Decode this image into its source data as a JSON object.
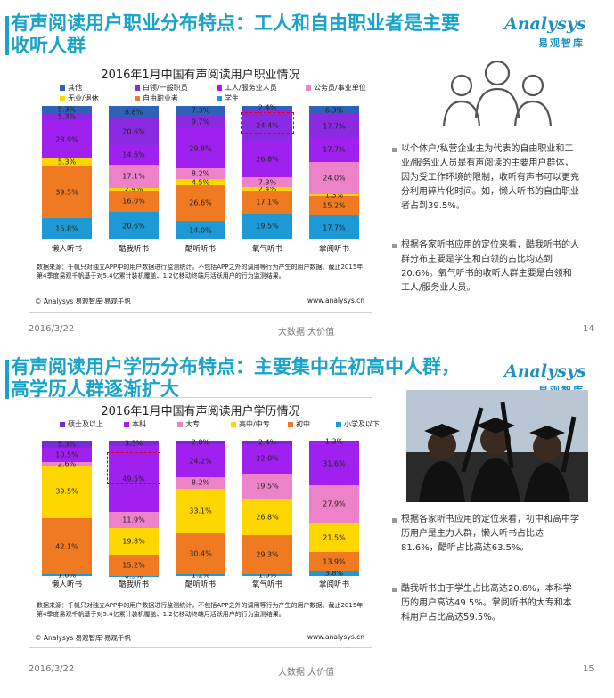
{
  "pages": [
    {
      "title_line1": "有声阅读用户职业分布特点：工人和自由职业者是主要",
      "title_line2": "收听人群",
      "logo_word": "Analysys",
      "logo_cn": "易观智库",
      "chart_title": "2016年1月中国有声阅读用户职业情况",
      "legend": [
        {
          "label": "其他",
          "color": "#2e62b6"
        },
        {
          "label": "白领/一般职员",
          "color": "#8a2be2"
        },
        {
          "label": "工人/服务业人员",
          "color": "#a020f0"
        },
        {
          "label": "公务员/事业单位",
          "color": "#ee82c8"
        },
        {
          "label": "无业/退休",
          "color": "#ffd700"
        },
        {
          "label": "自由职业者",
          "color": "#f07a22"
        },
        {
          "label": "学生",
          "color": "#1d9ad6"
        }
      ],
      "source": "数据来源：千帆只对独立APP中的用户数据进行监测统计，不包括APP之外的调用等行为产生的用户数据。截止2015年第4季度易观千帆基于对5.4亿累计装机覆盖、1.2亿移动终端月活跃用户的行为监测结果。",
      "copyright": "© Analysys 易观智库·易观千帆",
      "site": "www.analysys.cn",
      "footer_date": "2016/3/22",
      "footer_mid": "大数据    大价值",
      "page_number": "14",
      "bullets": [
        "以个体户/私营企业主为代表的自由职业和工业/服务业人员是有声阅读的主要用户群体，因为受工作环境的限制，收听有声书可以更充分利用碎片化时间。如，懒人听书的自由职业者占到39.5%。",
        "根据各家听书应用的定位来看，酷我听书的人群分布主要是学生和白领的占比均达到20.6%。氧气听书的收听人群主要是白领和工人/服务业人员。"
      ]
    },
    {
      "title_line1": "有声阅读用户学历分布特点：主要集中在初高中人群，",
      "title_line2": "高学历人群逐渐扩大",
      "logo_word": "Analysys",
      "logo_cn": "易观智库",
      "chart_title": "2016年1月中国有声阅读用户学历情况",
      "legend": [
        {
          "label": "硕士及以上",
          "color": "#7b2bd6"
        },
        {
          "label": "本科",
          "color": "#a020f0"
        },
        {
          "label": "大专",
          "color": "#ee82c8"
        },
        {
          "label": "高中/中专",
          "color": "#ffd700"
        },
        {
          "label": "初中",
          "color": "#f07a22"
        },
        {
          "label": "小学及以下",
          "color": "#1d9ad6"
        }
      ],
      "source": "数据来源：千帆只对独立APP中的用户数据进行监测统计，不包括APP之外的调用等行为产生的用户数据。截止2015年第4季度易观千帆基于对5.4亿累计装机覆盖、1.2亿移动终端月活跃用户的行为监测结果。",
      "copyright": "© Analysys 易观智库·易观千帆",
      "site": "www.analysys.cn",
      "footer_date": "2016/3/22",
      "footer_mid": "大数据    大价值",
      "page_number": "15",
      "bullets": [
        "根据各家听书应用的定位来看，初中和高中学历用户是主力人群，懒人听书占比达81.6%，酷听占比高达63.5%。",
        "酷我听书由于学生占比高达20.6%，本科学历的用户高达49.5%。掌阅听书的大专和本科用户占比高达59.5%。"
      ]
    }
  ],
  "chart_data": [
    {
      "type": "bar",
      "stacked": true,
      "title": "2016年1月中国有声阅读用户职业情况",
      "categories": [
        "懒人听书",
        "酷我听书",
        "酷听听书",
        "氧气听书",
        "掌阅听书"
      ],
      "ylim": [
        0,
        100
      ],
      "series": [
        {
          "name": "学生",
          "color": "#1d9ad6",
          "values": [
            15.8,
            20.6,
            14.0,
            19.5,
            17.7
          ]
        },
        {
          "name": "自由职业者",
          "color": "#f07a22",
          "values": [
            39.5,
            16.0,
            26.6,
            17.1,
            15.2
          ]
        },
        {
          "name": "无业/退休",
          "color": "#ffd700",
          "values": [
            5.3,
            2.4,
            4.5,
            2.4,
            1.3
          ]
        },
        {
          "name": "公务员/事业单位",
          "color": "#ee82c8",
          "values": [
            0,
            17.1,
            8.2,
            7.3,
            24.0
          ]
        },
        {
          "name": "工人/服务业人员",
          "color": "#a020f0",
          "values": [
            28.9,
            14.6,
            29.8,
            26.8,
            17.7
          ]
        },
        {
          "name": "白领/一般职员",
          "color": "#8a2be2",
          "values": [
            5.3,
            20.6,
            9.7,
            24.4,
            17.7
          ]
        },
        {
          "name": "其他",
          "color": "#2e62b6",
          "values": [
            5.3,
            8.8,
            7.3,
            2.4,
            6.3
          ]
        }
      ],
      "labels": [
        [
          "15.8%",
          "39.5%",
          "5.3%",
          "",
          "28.9%",
          "5.3%",
          "5.3%"
        ],
        [
          "20.6%",
          "16.0%",
          "2.4%",
          "17.1%",
          "14.6%",
          "20.6%",
          "8.8%"
        ],
        [
          "14.0%",
          "26.6%",
          "4.5%",
          "8.2%",
          "29.8%",
          "9.7%",
          "7.3%"
        ],
        [
          "19.5%",
          "17.1%",
          "2.4%",
          "7.3%",
          "26.8%",
          "24.4%",
          "2.4%"
        ],
        [
          "17.7%",
          "15.2%",
          "1.3%",
          "24.0%",
          "17.7%",
          "17.7%",
          "6.3%"
        ]
      ],
      "highlight": {
        "category_index": 3,
        "series_index": 5
      }
    },
    {
      "type": "bar",
      "stacked": true,
      "title": "2016年1月中国有声阅读用户学历情况",
      "categories": [
        "懒人听书",
        "酷我听书",
        "酷听听书",
        "氧气听书",
        "掌阅听书"
      ],
      "ylim": [
        0,
        100
      ],
      "series": [
        {
          "name": "小学及以下",
          "color": "#1d9ad6",
          "values": [
            1.0,
            0.3,
            1.2,
            1.0,
            3.8
          ]
        },
        {
          "name": "初中",
          "color": "#f07a22",
          "values": [
            42.1,
            15.2,
            30.4,
            29.3,
            13.9
          ]
        },
        {
          "name": "高中/中专",
          "color": "#ffd700",
          "values": [
            39.5,
            19.8,
            33.1,
            26.8,
            21.5
          ]
        },
        {
          "name": "大专",
          "color": "#ee82c8",
          "values": [
            2.6,
            11.9,
            8.2,
            19.5,
            27.9
          ]
        },
        {
          "name": "本科",
          "color": "#a020f0",
          "values": [
            10.5,
            49.5,
            24.2,
            22.0,
            31.6
          ]
        },
        {
          "name": "硕士及以上",
          "color": "#7b2bd6",
          "values": [
            5.3,
            3.3,
            2.8,
            2.4,
            1.3
          ]
        }
      ],
      "labels": [
        [
          "1.0%",
          "42.1%",
          "39.5%",
          "2.6%",
          "10.5%",
          "5.3%"
        ],
        [
          "0.3%",
          "15.2%",
          "19.8%",
          "11.9%",
          "49.5%",
          "3.3%"
        ],
        [
          "1.2%",
          "30.4%",
          "33.1%",
          "8.2%",
          "24.2%",
          "2.8%"
        ],
        [
          "1.0%",
          "29.3%",
          "26.8%",
          "19.5%",
          "22.0%",
          "2.4%"
        ],
        [
          "3.8%",
          "13.9%",
          "21.5%",
          "27.9%",
          "31.6%",
          "1.3%"
        ]
      ],
      "highlight": {
        "category_index": 1,
        "series_index": 4
      }
    }
  ]
}
